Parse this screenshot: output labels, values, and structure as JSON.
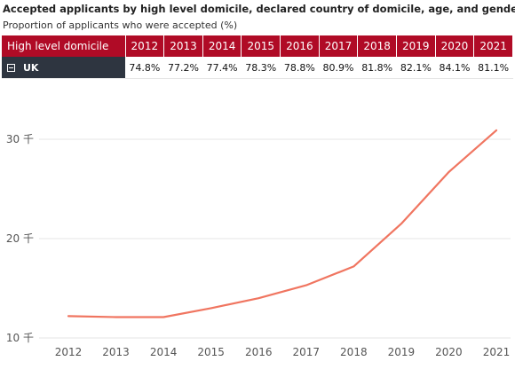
{
  "header": {
    "title": "Accepted applicants by high level domicile, declared country of domicile, age, and gender",
    "subtitle": "Proportion of applicants who were accepted (%)"
  },
  "table": {
    "row_header": "High level domicile",
    "years": [
      "2012",
      "2013",
      "2014",
      "2015",
      "2016",
      "2017",
      "2018",
      "2019",
      "2020",
      "2021"
    ],
    "rows": [
      {
        "label": "UK",
        "values": [
          "74.8%",
          "77.2%",
          "77.4%",
          "78.3%",
          "78.8%",
          "80.9%",
          "81.8%",
          "82.1%",
          "84.1%",
          "81.1%"
        ]
      }
    ]
  },
  "chart_data": {
    "type": "line",
    "categories": [
      "2012",
      "2013",
      "2014",
      "2015",
      "2016",
      "2017",
      "2018",
      "2019",
      "2020",
      "2021"
    ],
    "series": [
      {
        "values": [
          12200,
          12100,
          12100,
          13000,
          14000,
          15300,
          17200,
          21500,
          26700,
          30900
        ]
      }
    ],
    "y_ticks": [
      "10 千",
      "20 千",
      "30 千"
    ],
    "y_tick_values": [
      10000,
      20000,
      30000
    ],
    "ylim": [
      10000,
      32000
    ],
    "grid": true,
    "line_color": "#f07560"
  }
}
